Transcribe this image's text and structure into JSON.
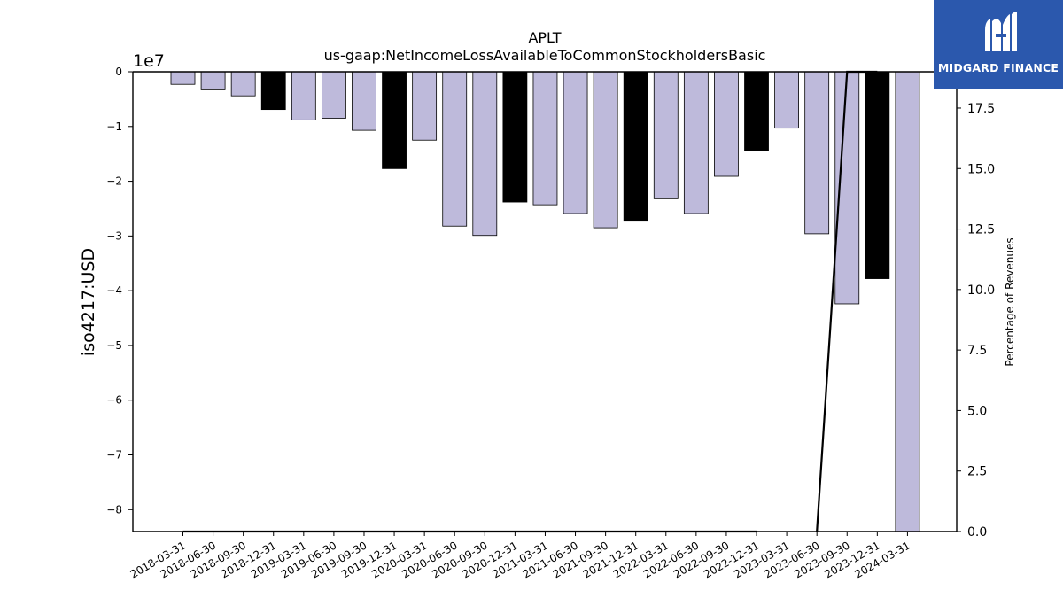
{
  "brand": {
    "name": "MIDGARD FINANCE",
    "logo_icon": "midgard-m-logo-icon",
    "background_color": "#2b58ad"
  },
  "chart_data": {
    "type": "bar",
    "title": "APLT",
    "subtitle": "us-gaap:NetIncomeLossAvailableToCommonStockholdersBasic",
    "ylabel": "iso4217:USD",
    "y_offset_label": "1e7",
    "y2label": "Percentage of Revenues",
    "ylim": [
      -8.4,
      0
    ],
    "y2lim": [
      0,
      19
    ],
    "yticks": [
      0,
      -1,
      -2,
      -3,
      -4,
      -5,
      -6,
      -7,
      -8
    ],
    "ytick_labels": [
      "0",
      "−1",
      "−2",
      "−3",
      "−4",
      "−5",
      "−6",
      "−7",
      "−8"
    ],
    "y2ticks": [
      0,
      2.5,
      5,
      7.5,
      10,
      12.5,
      15,
      17.5
    ],
    "y2tick_labels": [
      "0.0",
      "2.5",
      "5.0",
      "7.5",
      "10.0",
      "12.5",
      "15.0",
      "17.5"
    ],
    "categories": [
      "2018-03-31",
      "2018-06-30",
      "2018-09-30",
      "2018-12-31",
      "2019-03-31",
      "2019-06-30",
      "2019-09-30",
      "2019-12-31",
      "2020-03-31",
      "2020-06-30",
      "2020-09-30",
      "2020-12-31",
      "2021-03-31",
      "2021-06-30",
      "2021-09-30",
      "2021-12-31",
      "2022-03-31",
      "2022-06-30",
      "2022-09-30",
      "2022-12-31",
      "2023-03-31",
      "2023-06-30",
      "2023-09-30",
      "2023-12-31",
      "2024-03-31"
    ],
    "series": [
      {
        "values": [
          -0.23,
          -0.33,
          -0.44,
          -0.69,
          -0.88,
          -0.85,
          -1.07,
          -1.77,
          -1.25,
          -2.82,
          -2.99,
          -2.38,
          -2.43,
          -2.59,
          -2.85,
          -2.73,
          -2.32,
          -2.59,
          -1.91,
          -1.44,
          -1.03,
          -2.96,
          -4.24,
          -3.78,
          -8.4
        ],
        "bar_types": [
          "q",
          "q",
          "q",
          "a",
          "q",
          "q",
          "q",
          "a",
          "q",
          "q",
          "q",
          "a",
          "q",
          "q",
          "q",
          "a",
          "q",
          "q",
          "q",
          "a",
          "q",
          "q",
          "q",
          "a",
          "q"
        ]
      },
      {
        "values": [
          0,
          0,
          0,
          0,
          0,
          0,
          0,
          0,
          0,
          0,
          0,
          0,
          0,
          0,
          0,
          0,
          0,
          0,
          0,
          0,
          null,
          0,
          19,
          19,
          null
        ]
      }
    ],
    "colors": {
      "quarter": "#bebadb",
      "annual": "#000000",
      "edge": "#000000",
      "line": "#000000"
    },
    "grid": false,
    "legend": "none"
  }
}
